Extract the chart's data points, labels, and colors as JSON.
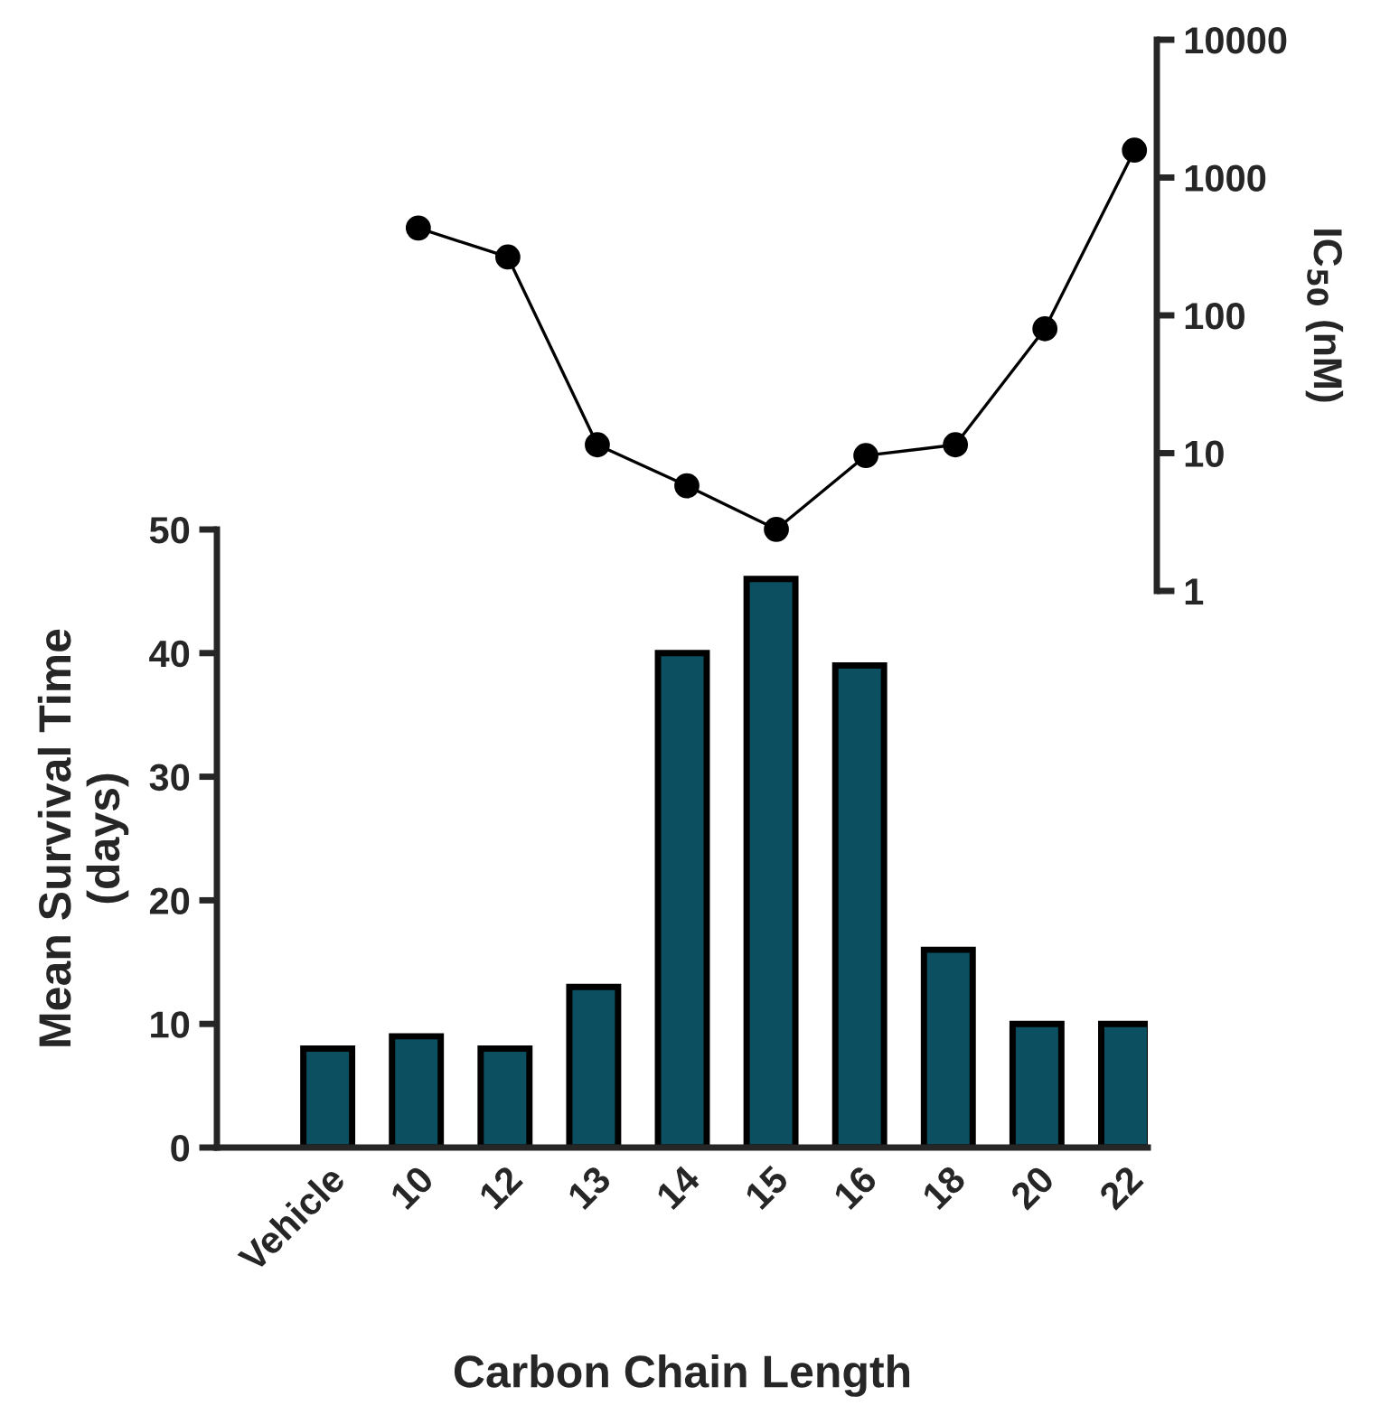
{
  "chart_data": [
    {
      "type": "bar",
      "categories": [
        "Vehicle",
        "10",
        "12",
        "13",
        "14",
        "15",
        "16",
        "18",
        "20",
        "22"
      ],
      "values": [
        8,
        9,
        8,
        13,
        40,
        46,
        39,
        16,
        10,
        10
      ],
      "color": "#0b4f60",
      "xlabel": "Carbon Chain Length",
      "ylabel": "Mean Survival Time\n(days)",
      "ylim": [
        0,
        50
      ],
      "yticks": [
        0,
        10,
        20,
        30,
        40,
        50
      ],
      "grid": false,
      "legend": false
    },
    {
      "type": "line",
      "categories": [
        null,
        null,
        null,
        null,
        null,
        null,
        null,
        null,
        null,
        null
      ],
      "values": [
        null,
        430,
        265,
        11.5,
        5.8,
        2.8,
        9.6,
        11.5,
        80,
        1580
      ],
      "color": "#000000",
      "ylabel": "IC$_{50}$ (nM)",
      "log": "y",
      "ylim": [
        1,
        10000
      ],
      "yticks": [
        1,
        10,
        100,
        1000,
        10000
      ],
      "tick_labels": "y",
      "marker": "circle",
      "line_style": "solid",
      "grid": false,
      "legend": false
    }
  ]
}
